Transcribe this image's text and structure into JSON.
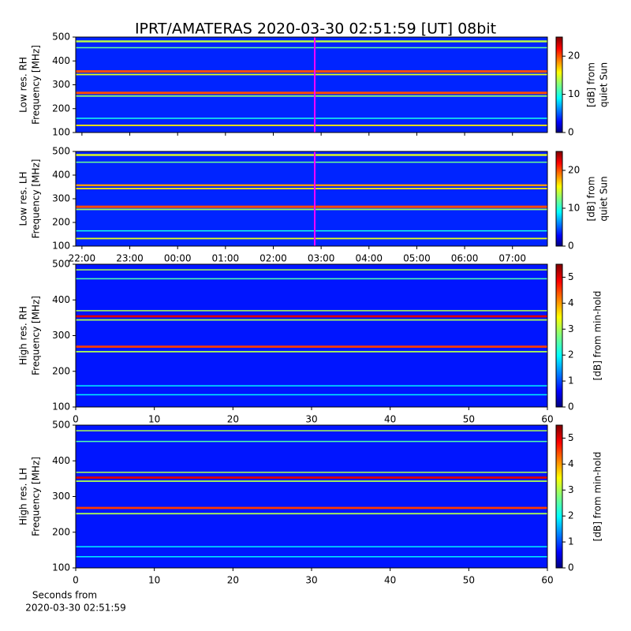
{
  "chart_data": [
    {
      "type": "heatmap",
      "title": "IPRT/AMATERAS 2020-03-30 02:51:59 [UT]   08bit",
      "ylabel": [
        "Low res. RH",
        "Frequency [MHz]"
      ],
      "cbar_label": [
        "[dB] from",
        "quiet Sun"
      ],
      "xlim": [
        -2.13,
        7.73
      ],
      "xticks": [
        -2,
        -1,
        0,
        1,
        2,
        3,
        4,
        5,
        6,
        7
      ],
      "ylim": [
        100,
        500
      ],
      "yticks": [
        100,
        200,
        300,
        400,
        500
      ],
      "clim": [
        0,
        25
      ],
      "cticks": [
        0,
        10,
        20
      ],
      "cursor": 2.8664,
      "cursor_color": "#ff00ff",
      "background": 4,
      "bands": [
        {
          "freq": 482,
          "width": 8,
          "value": 14
        },
        {
          "freq": 456,
          "width": 4,
          "value": 12
        },
        {
          "freq": 356,
          "width": 10,
          "value": 20
        },
        {
          "freq": 343,
          "width": 6,
          "value": 15
        },
        {
          "freq": 266,
          "width": 10,
          "value": 20
        },
        {
          "freq": 253,
          "width": 6,
          "value": 13
        },
        {
          "freq": 160,
          "width": 4,
          "value": 10
        },
        {
          "freq": 130,
          "width": 6,
          "value": 16
        }
      ]
    },
    {
      "type": "heatmap",
      "ylabel": [
        "Low res. LH",
        "Frequency [MHz]"
      ],
      "cbar_label": [
        "[dB] from",
        "quiet Sun"
      ],
      "xlim": [
        -2.13,
        7.73
      ],
      "xticks": [
        {
          "value": -2,
          "label": "22:00"
        },
        {
          "value": -1,
          "label": "23:00"
        },
        {
          "value": 0,
          "label": "00:00"
        },
        {
          "value": 1,
          "label": "01:00"
        },
        {
          "value": 2,
          "label": "02:00"
        },
        {
          "value": 3,
          "label": "03:00"
        },
        {
          "value": 4,
          "label": "04:00"
        },
        {
          "value": 5,
          "label": "05:00"
        },
        {
          "value": 6,
          "label": "06:00"
        },
        {
          "value": 7,
          "label": "07:00"
        }
      ],
      "ylim": [
        100,
        500
      ],
      "yticks": [
        100,
        200,
        300,
        400,
        500
      ],
      "clim": [
        0,
        25
      ],
      "cticks": [
        0,
        10,
        20
      ],
      "cursor": 2.8664,
      "cursor_color": "#ff00ff",
      "background": 4,
      "bands": [
        {
          "freq": 485,
          "width": 8,
          "value": 15
        },
        {
          "freq": 455,
          "width": 4,
          "value": 12
        },
        {
          "freq": 357,
          "width": 8,
          "value": 18
        },
        {
          "freq": 343,
          "width": 6,
          "value": 16
        },
        {
          "freq": 266,
          "width": 10,
          "value": 20
        },
        {
          "freq": 255,
          "width": 6,
          "value": 13
        },
        {
          "freq": 165,
          "width": 4,
          "value": 10
        },
        {
          "freq": 132,
          "width": 6,
          "value": 15
        }
      ]
    },
    {
      "type": "heatmap",
      "ylabel": [
        "High res. RH",
        "Frequency [MHz]"
      ],
      "cbar_label": [
        "[dB] from min-hold"
      ],
      "xlim": [
        0,
        60
      ],
      "xticks": [
        0,
        10,
        20,
        30,
        40,
        50,
        60
      ],
      "ylim": [
        100,
        500
      ],
      "yticks": [
        100,
        200,
        300,
        400,
        500
      ],
      "clim": [
        0,
        5.5
      ],
      "cticks": [
        0,
        1,
        2,
        3,
        4,
        5
      ],
      "background": 0.8,
      "bands": [
        {
          "freq": 485,
          "width": 2,
          "value": 3
        },
        {
          "freq": 460,
          "width": 2,
          "value": 2.5
        },
        {
          "freq": 370,
          "width": 3,
          "value": 3
        },
        {
          "freq": 354,
          "width": 6,
          "value": 5
        },
        {
          "freq": 344,
          "width": 4,
          "value": 3
        },
        {
          "freq": 269,
          "width": 6,
          "value": 4.5
        },
        {
          "freq": 255,
          "width": 4,
          "value": 3
        },
        {
          "freq": 160,
          "width": 2,
          "value": 2
        },
        {
          "freq": 135,
          "width": 2,
          "value": 2
        }
      ]
    },
    {
      "type": "heatmap",
      "ylabel": [
        "High res. LH",
        "Frequency [MHz]"
      ],
      "cbar_label": [
        "[dB] from min-hold"
      ],
      "xlim": [
        0,
        60
      ],
      "xticks": [
        0,
        10,
        20,
        30,
        40,
        50,
        60
      ],
      "xlabel": [
        "Seconds from",
        "2020-03-30 02:51:59"
      ],
      "ylim": [
        100,
        500
      ],
      "yticks": [
        100,
        200,
        300,
        400,
        500
      ],
      "clim": [
        0,
        5.5
      ],
      "cticks": [
        0,
        1,
        2,
        3,
        4,
        5
      ],
      "background": 0.8,
      "bands": [
        {
          "freq": 485,
          "width": 2,
          "value": 3
        },
        {
          "freq": 455,
          "width": 2,
          "value": 2.5
        },
        {
          "freq": 368,
          "width": 3,
          "value": 3
        },
        {
          "freq": 353,
          "width": 6,
          "value": 5
        },
        {
          "freq": 343,
          "width": 4,
          "value": 3
        },
        {
          "freq": 268,
          "width": 6,
          "value": 4.5
        },
        {
          "freq": 252,
          "width": 4,
          "value": 3
        },
        {
          "freq": 160,
          "width": 2,
          "value": 2
        },
        {
          "freq": 132,
          "width": 2,
          "value": 2
        }
      ]
    }
  ]
}
